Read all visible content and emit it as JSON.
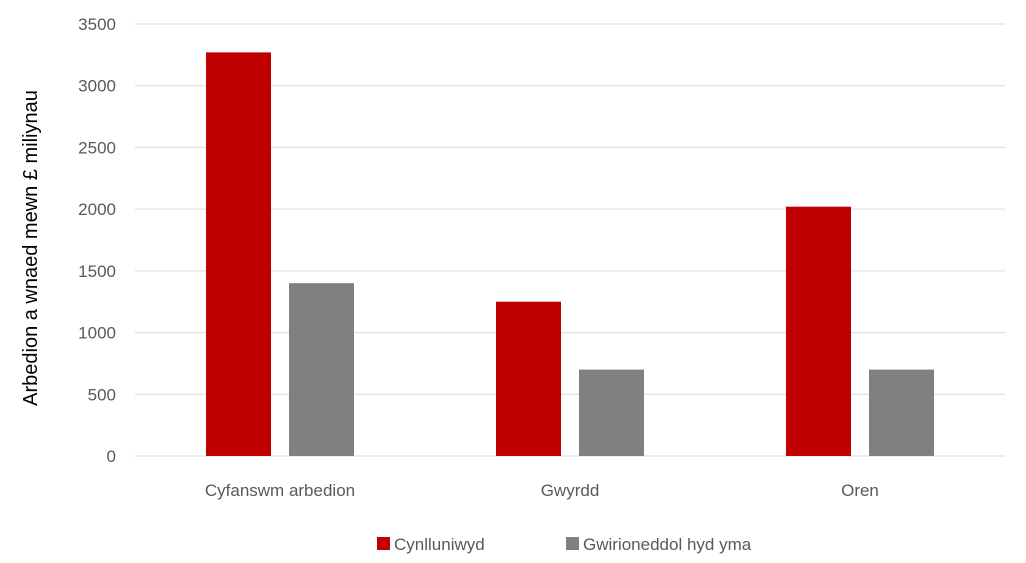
{
  "chart_data": {
    "type": "bar",
    "categories": [
      "Cyfanswm arbedion",
      "Gwyrdd",
      "Oren"
    ],
    "series": [
      {
        "name": "Cynlluniwyd",
        "color": "#c00000",
        "values": [
          3270,
          1250,
          2020
        ]
      },
      {
        "name": "Gwirioneddol hyd yma",
        "color": "#808080",
        "values": [
          1400,
          700,
          700
        ]
      }
    ],
    "ylabel": "Arbedion a wnaed mewn £ miliynau",
    "xlabel": "",
    "ylim": [
      0,
      3500
    ],
    "yticks": [
      0,
      500,
      1000,
      1500,
      2000,
      2500,
      3000,
      3500
    ],
    "grid": true,
    "legend": "bottom"
  }
}
